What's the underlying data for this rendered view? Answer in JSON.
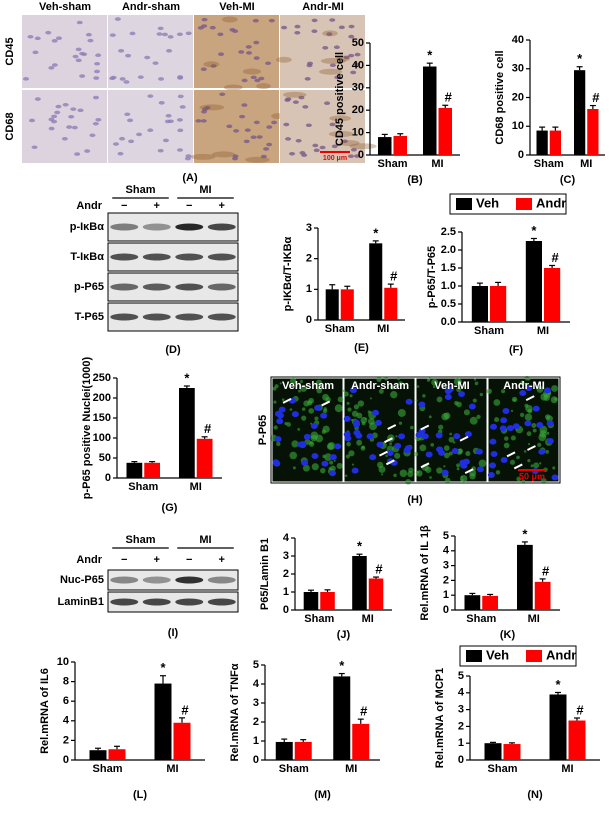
{
  "chart_data": [
    {
      "type": "bar",
      "label": "(B)",
      "ylabel": "CD45 positive cell",
      "categories": [
        "Sham",
        "MI"
      ],
      "series": [
        {
          "name": "Veh",
          "color": "#000000",
          "values": [
            8,
            39.5
          ],
          "errors": [
            1.2,
            1.5
          ]
        },
        {
          "name": "Andr",
          "color": "#ff0000",
          "values": [
            8.5,
            21
          ],
          "errors": [
            1.0,
            1.2
          ]
        }
      ],
      "ylim": [
        0,
        50
      ],
      "yticks": [
        0,
        10,
        20,
        30,
        40,
        50
      ],
      "annotations": [
        "*",
        "#"
      ],
      "legend": false
    },
    {
      "type": "bar",
      "label": "(C)",
      "ylabel": "CD68 positive cell",
      "categories": [
        "Sham",
        "MI"
      ],
      "series": [
        {
          "name": "Veh",
          "color": "#000000",
          "values": [
            8.5,
            29.5
          ],
          "errors": [
            1.2,
            1.2
          ]
        },
        {
          "name": "Andr",
          "color": "#ff0000",
          "values": [
            8.5,
            16
          ],
          "errors": [
            1.2,
            1.2
          ]
        }
      ],
      "ylim": [
        0,
        40
      ],
      "yticks": [
        0,
        10,
        20,
        30,
        40
      ],
      "annotations": [
        "*",
        "#"
      ],
      "legend": false
    },
    {
      "type": "bar",
      "label": "(E)",
      "ylabel": "p-IKBα/T-IKBα",
      "categories": [
        "Sham",
        "MI"
      ],
      "series": [
        {
          "name": "Veh",
          "color": "#000000",
          "values": [
            1,
            2.5
          ],
          "errors": [
            0.15,
            0.08
          ]
        },
        {
          "name": "Andr",
          "color": "#ff0000",
          "values": [
            1,
            1.05
          ],
          "errors": [
            0.1,
            0.12
          ]
        }
      ],
      "ylim": [
        0,
        3
      ],
      "yticks": [
        0,
        1,
        2,
        3
      ],
      "annotations": [
        "*",
        "#"
      ],
      "legend": false
    },
    {
      "type": "bar",
      "label": "(F)",
      "ylabel": "p-P65/T-P65",
      "categories": [
        "Sham",
        "MI"
      ],
      "series": [
        {
          "name": "Veh",
          "color": "#000000",
          "values": [
            1,
            2.25
          ],
          "errors": [
            0.08,
            0.07
          ]
        },
        {
          "name": "Andr",
          "color": "#ff0000",
          "values": [
            1,
            1.5
          ],
          "errors": [
            0.1,
            0.07
          ]
        }
      ],
      "ylim": [
        0,
        2.5
      ],
      "yticks": [
        {
          "value": 0,
          "label": "0.0"
        },
        {
          "value": 0.5,
          "label": "0.5"
        },
        {
          "value": 1,
          "label": "1.0"
        },
        {
          "value": 1.5,
          "label": "1.5"
        },
        {
          "value": 2,
          "label": "2.0"
        },
        {
          "value": 2.5,
          "label": "2.5"
        }
      ],
      "annotations": [
        "*",
        "#"
      ],
      "legend": true
    },
    {
      "type": "bar",
      "label": "(G)",
      "ylabel": "p-P65 positive Nuclei(1000)",
      "categories": [
        "Sham",
        "MI"
      ],
      "series": [
        {
          "name": "Veh",
          "color": "#000000",
          "values": [
            38,
            225
          ],
          "errors": [
            3,
            5
          ]
        },
        {
          "name": "Andr",
          "color": "#ff0000",
          "values": [
            38,
            98
          ],
          "errors": [
            3,
            5
          ]
        }
      ],
      "ylim": [
        0,
        250
      ],
      "yticks": [
        0,
        50,
        100,
        150,
        200,
        250
      ],
      "annotations": [
        "*",
        "#"
      ],
      "legend": false
    },
    {
      "type": "bar",
      "label": "(J)",
      "ylabel": "P65/Lamin B1",
      "categories": [
        "Sham",
        "MI"
      ],
      "series": [
        {
          "name": "Veh",
          "color": "#000000",
          "values": [
            1,
            3.0
          ],
          "errors": [
            0.1,
            0.1
          ]
        },
        {
          "name": "Andr",
          "color": "#ff0000",
          "values": [
            1,
            1.75
          ],
          "errors": [
            0.12,
            0.08
          ]
        }
      ],
      "ylim": [
        0,
        4
      ],
      "yticks": [
        0,
        1,
        2,
        3,
        4
      ],
      "annotations": [
        "*",
        "#"
      ],
      "legend": false
    },
    {
      "type": "bar",
      "label": "(K)",
      "ylabel": "Rel.mRNA of IL 1β",
      "categories": [
        "Sham",
        "MI"
      ],
      "series": [
        {
          "name": "Veh",
          "color": "#000000",
          "values": [
            1,
            4.4
          ],
          "errors": [
            0.12,
            0.2
          ]
        },
        {
          "name": "Andr",
          "color": "#ff0000",
          "values": [
            0.95,
            1.9
          ],
          "errors": [
            0.1,
            0.2
          ]
        }
      ],
      "ylim": [
        0,
        5
      ],
      "yticks": [
        0,
        1,
        2,
        3,
        4,
        5
      ],
      "annotations": [
        "*",
        "#"
      ],
      "legend": false
    },
    {
      "type": "bar",
      "label": "(L)",
      "ylabel": "Rel.mRNA of IL6",
      "categories": [
        "Sham",
        "MI"
      ],
      "series": [
        {
          "name": "Veh",
          "color": "#000000",
          "values": [
            1,
            7.8
          ],
          "errors": [
            0.2,
            0.8
          ]
        },
        {
          "name": "Andr",
          "color": "#ff0000",
          "values": [
            1.1,
            3.8
          ],
          "errors": [
            0.3,
            0.5
          ]
        }
      ],
      "ylim": [
        0,
        10
      ],
      "yticks": [
        0,
        2,
        4,
        6,
        8,
        10
      ],
      "annotations": [
        "*",
        "#"
      ],
      "legend": false
    },
    {
      "type": "bar",
      "label": "(M)",
      "ylabel": "Rel.mRNA of TNFα",
      "categories": [
        "Sham",
        "MI"
      ],
      "series": [
        {
          "name": "Veh",
          "color": "#000000",
          "values": [
            0.95,
            4.4
          ],
          "errors": [
            0.15,
            0.15
          ]
        },
        {
          "name": "Andr",
          "color": "#ff0000",
          "values": [
            0.95,
            1.9
          ],
          "errors": [
            0.12,
            0.25
          ]
        }
      ],
      "ylim": [
        0,
        5
      ],
      "yticks": [
        0,
        1,
        2,
        3,
        4,
        5
      ],
      "annotations": [
        "*",
        "#"
      ],
      "legend": false
    },
    {
      "type": "bar",
      "label": "(N)",
      "ylabel": "Rel.mRNA of MCP1",
      "categories": [
        "Sham",
        "MI"
      ],
      "series": [
        {
          "name": "Veh",
          "color": "#000000",
          "values": [
            1,
            3.9
          ],
          "errors": [
            0.05,
            0.12
          ]
        },
        {
          "name": "Andr",
          "color": "#ff0000",
          "values": [
            0.95,
            2.35
          ],
          "errors": [
            0.07,
            0.15
          ]
        }
      ],
      "ylim": [
        0,
        5
      ],
      "yticks": [
        0,
        1,
        2,
        3,
        4,
        5
      ],
      "annotations": [
        "*",
        "#"
      ],
      "legend": true
    }
  ],
  "micrographs": {
    "label": "(A)",
    "columns": [
      "Veh-sham",
      "Andr-sham",
      "Veh-MI",
      "Andr-MI"
    ],
    "rows": [
      "CD45",
      "CD68"
    ],
    "scale_bar": "100 μm"
  },
  "blots": [
    {
      "label": "(D)",
      "groups": [
        "Sham",
        "MI"
      ],
      "treatment": "Andr",
      "signs": [
        "−",
        "+",
        "−",
        "+"
      ],
      "rows": [
        "p-IκBα",
        "T-IκBα",
        "p-P65",
        "T-P65"
      ]
    },
    {
      "label": "(I)",
      "groups": [
        "Sham",
        "MI"
      ],
      "treatment": "Andr",
      "signs": [
        "−",
        "+",
        "−",
        "+"
      ],
      "rows": [
        "Nuc-P65",
        "LaminB1"
      ]
    }
  ],
  "immunofluorescence": {
    "label": "(H)",
    "columns": [
      "Veh-sham",
      "Andr-sham",
      "Veh-MI",
      "Andr-MI"
    ],
    "row": "P-P65",
    "scale_bar": "50 μm"
  }
}
